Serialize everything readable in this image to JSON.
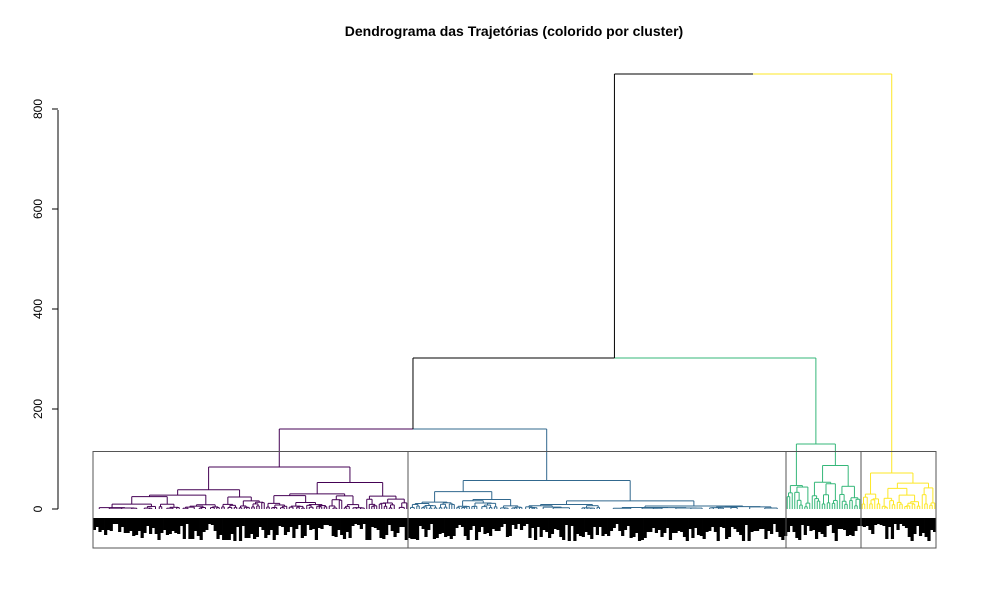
{
  "chart_data": {
    "type": "dendrogram",
    "title": "Dendrograma das Trajetórias (colorido por cluster)",
    "xlabel": "",
    "ylabel": "",
    "ylim": [
      0,
      870
    ],
    "yticks": [
      0,
      200,
      400,
      600,
      800
    ],
    "y_tick_labels": [
      "0",
      "200",
      "400",
      "600",
      "800"
    ],
    "n_clusters": 4,
    "n_leaves": 300,
    "cluster_colors": [
      "#440154",
      "#31688E",
      "#35B779",
      "#FDE725"
    ],
    "root_color": "#000000",
    "merge_heights": {
      "root": 870,
      "clusters_1_2_3": 302,
      "clusters_1_2": 160,
      "cluster_1": 84,
      "cluster_2": 57,
      "cluster_3": 130,
      "cluster_4": 72
    },
    "cut_height": 115
  }
}
